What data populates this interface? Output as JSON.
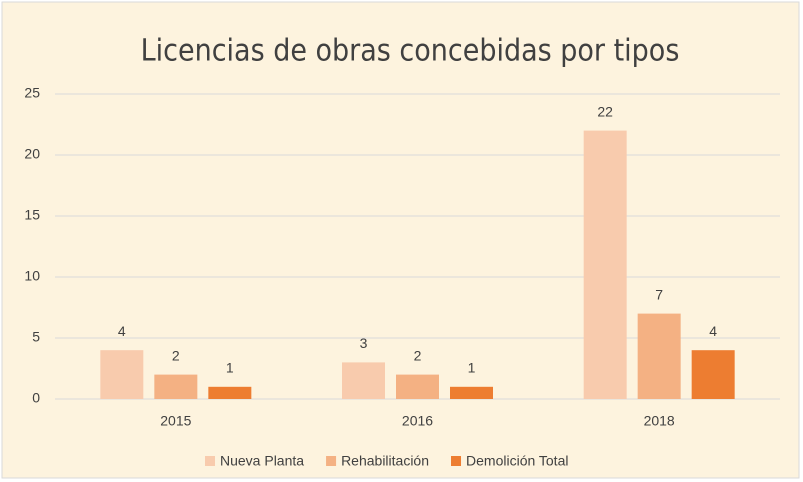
{
  "chart_data": {
    "type": "bar",
    "title": "Licencias de obras concebidas por tipos",
    "categories": [
      "2015",
      "2016",
      "2018"
    ],
    "series": [
      {
        "name": "Nueva Planta",
        "color": "#f8cbad",
        "values": [
          4,
          3,
          22
        ]
      },
      {
        "name": "Rehabilitación",
        "color": "#f4b183",
        "values": [
          2,
          2,
          7
        ]
      },
      {
        "name": "Demolición Total",
        "color": "#ed7d31",
        "values": [
          1,
          1,
          4
        ]
      }
    ],
    "ylim": [
      0,
      25
    ],
    "yticks": [
      0,
      5,
      10,
      15,
      20,
      25
    ],
    "grid": true,
    "legend": "bottom",
    "background": "#fdf3de"
  }
}
